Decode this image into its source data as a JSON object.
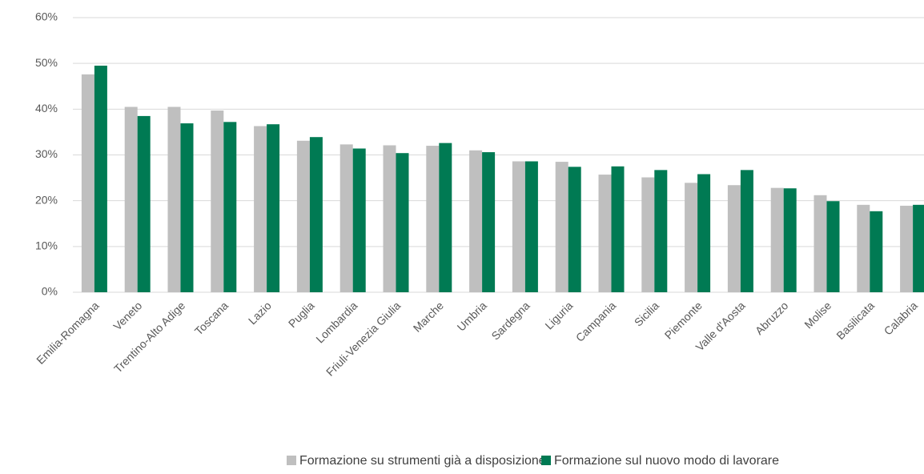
{
  "chart_data": {
    "type": "bar",
    "categories": [
      "Emilia-Romagna",
      "Veneto",
      "Trentino-Alto Adige",
      "Toscana",
      "Lazio",
      "Puglia",
      "Lombardia",
      "Friuli-Venezia Giulia",
      "Marche",
      "Umbria",
      "Sardegna",
      "Liguria",
      "Campania",
      "Sicilia",
      "Piemonte",
      "Valle d'Aosta",
      "Abruzzo",
      "Molise",
      "Basilicata",
      "Calabria"
    ],
    "series": [
      {
        "name": "Formazione su strumenti già a disposizione",
        "color": "#bfbfbf",
        "values": [
          47.6,
          40.5,
          40.5,
          39.7,
          36.3,
          33.1,
          32.3,
          32.1,
          32.0,
          31.0,
          28.6,
          28.5,
          25.7,
          25.1,
          23.9,
          23.4,
          22.8,
          21.2,
          19.1,
          18.9
        ]
      },
      {
        "name": "Formazione sul nuovo modo di lavorare",
        "color": "#007a53",
        "values": [
          49.5,
          38.5,
          36.9,
          37.2,
          36.7,
          33.9,
          31.4,
          30.4,
          32.6,
          30.6,
          28.6,
          27.4,
          27.5,
          26.7,
          25.8,
          26.7,
          22.7,
          19.9,
          17.7,
          19.1
        ]
      }
    ],
    "ylim": [
      0,
      60
    ],
    "yticks": [
      {
        "value": 0,
        "label": "0%"
      },
      {
        "value": 10,
        "label": "10%"
      },
      {
        "value": 20,
        "label": "20%"
      },
      {
        "value": 30,
        "label": "30%"
      },
      {
        "value": 40,
        "label": "40%"
      },
      {
        "value": 50,
        "label": "50%"
      },
      {
        "value": 60,
        "label": "60%"
      }
    ],
    "grid": true,
    "legend": "bottom"
  }
}
